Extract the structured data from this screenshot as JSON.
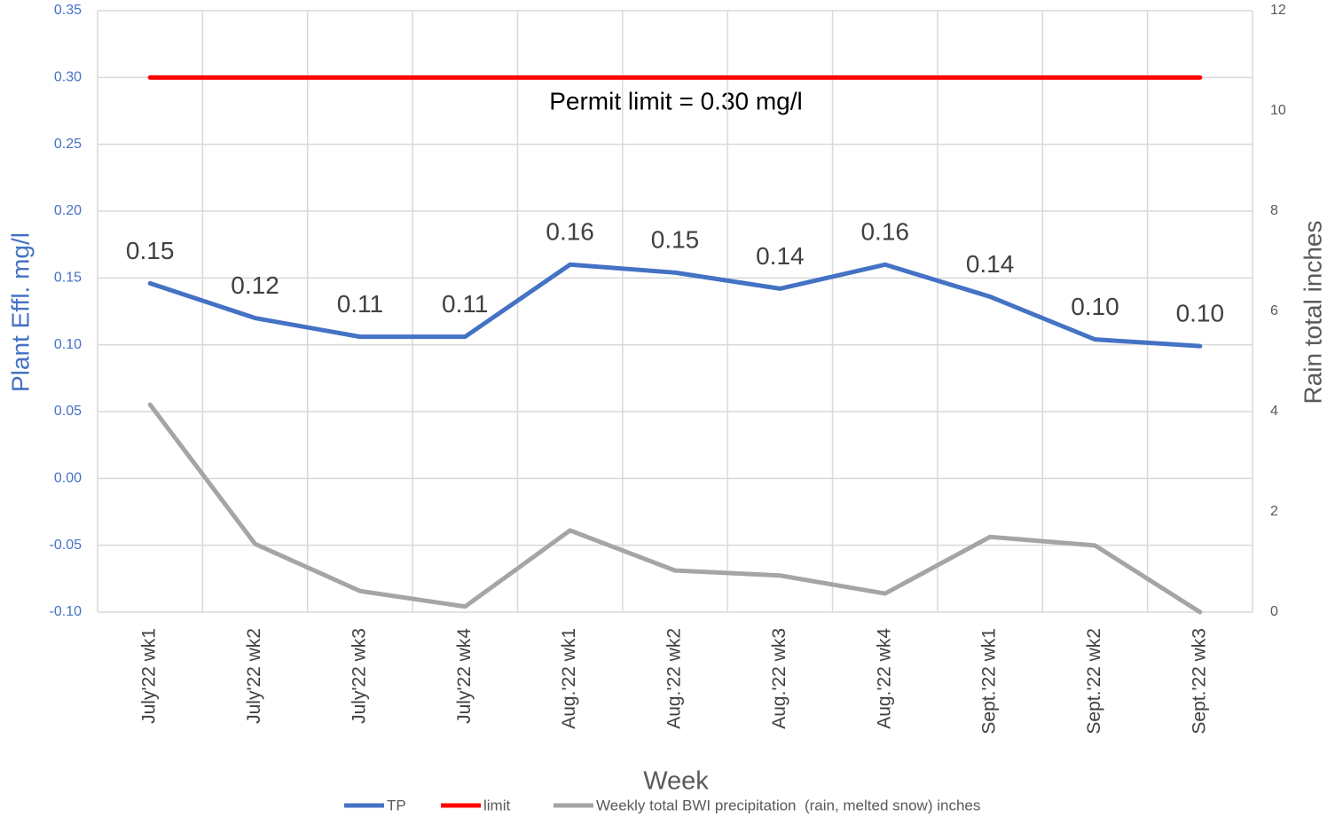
{
  "chart_data": {
    "type": "line",
    "x_label": "Week",
    "y_label": "Plant Effl. mg/l",
    "y2_label": "Rain total inches",
    "annotations": [
      "Permit limit = 0.30 mg/l"
    ],
    "categories": [
      "July'22 wk1",
      "July'22 wk2",
      "July'22 wk3",
      "July'22 wk4",
      "Aug.'22 wk1",
      "Aug.'22 wk2",
      "Aug.'22 wk3",
      "Aug.'22 wk4",
      "Sept.'22 wk1",
      "Sept.'22 wk2",
      "Sept.'22 wk3"
    ],
    "series": [
      {
        "name": "TP",
        "color": "#4472c4",
        "values": [
          0.146,
          0.12,
          0.106,
          0.106,
          0.16,
          0.154,
          0.142,
          0.16,
          0.136,
          0.104,
          0.099
        ],
        "value_labels": [
          "0.15",
          "0.12",
          "0.11",
          "0.11",
          "0.16",
          "0.15",
          "0.14",
          "0.16",
          "0.14",
          "0.10",
          "0.10"
        ]
      },
      {
        "name": "limit",
        "color": "#ff0000",
        "values": [
          0.3,
          0.3,
          0.3,
          0.3,
          0.3,
          0.3,
          0.3,
          0.3,
          0.3,
          0.3,
          0.3
        ]
      },
      {
        "name": "Weekly total BWI precipitation  (rain, melted snow) inches",
        "color": "#a5a5a5",
        "axis": "y2",
        "values": [
          4.14,
          1.36,
          0.42,
          0.11,
          1.63,
          0.83,
          0.73,
          0.37,
          1.5,
          1.33,
          0
        ]
      }
    ],
    "ylim": [
      -0.1,
      0.35
    ],
    "yticks": [
      {
        "value": -0.1,
        "label": "-0.10"
      },
      -0.05,
      {
        "value": 0,
        "label": "0.00"
      },
      0.05,
      {
        "value": 0.1,
        "label": "0.10"
      },
      0.15,
      {
        "value": 0.2,
        "label": "0.20"
      },
      0.25,
      {
        "value": 0.3,
        "label": "0.30"
      },
      0.35
    ],
    "y2lim": [
      0,
      12
    ],
    "y2ticks": [
      0,
      2,
      4,
      6,
      8,
      10,
      12
    ],
    "grid": true,
    "legend": "bottom"
  }
}
